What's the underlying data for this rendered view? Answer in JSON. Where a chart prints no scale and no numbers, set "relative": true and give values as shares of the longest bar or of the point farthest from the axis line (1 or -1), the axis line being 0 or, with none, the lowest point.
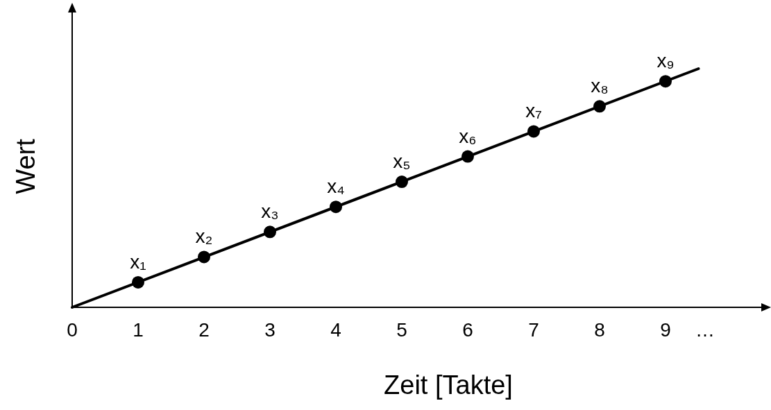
{
  "chart_data": {
    "type": "line",
    "relative": true,
    "xlabel": "Zeit [Takte]",
    "ylabel": "Wert",
    "xlim": [
      0,
      10.6
    ],
    "xticks": [
      0,
      1,
      2,
      3,
      4,
      5,
      6,
      7,
      8,
      9,
      {
        "value": 9.6,
        "label": "…"
      }
    ],
    "grid": false,
    "series": [
      {
        "type": "line",
        "color": "#000000",
        "x": [
          0,
          9.5
        ],
        "values": [
          0,
          1
        ],
        "marker": "none",
        "line_style": "solid"
      },
      {
        "type": "scatter",
        "color": "#000000",
        "x": [
          1,
          2,
          3,
          4,
          5,
          6,
          7,
          8,
          9
        ],
        "values": [
          0.105,
          0.211,
          0.316,
          0.421,
          0.526,
          0.632,
          0.737,
          0.842,
          0.947
        ],
        "marker": "circle"
      }
    ],
    "annotations": [
      {
        "text": "x₁",
        "x": 1,
        "y": 0.105
      },
      {
        "text": "x₂",
        "x": 2,
        "y": 0.211
      },
      {
        "text": "x₃",
        "x": 3,
        "y": 0.316
      },
      {
        "text": "x₄",
        "x": 4,
        "y": 0.421
      },
      {
        "text": "x₅",
        "x": 5,
        "y": 0.526
      },
      {
        "text": "x₆",
        "x": 6,
        "y": 0.632
      },
      {
        "text": "x₇",
        "x": 7,
        "y": 0.737
      },
      {
        "text": "x₈",
        "x": 8,
        "y": 0.842
      },
      {
        "text": "x₉",
        "x": 9,
        "y": 0.947
      }
    ]
  }
}
